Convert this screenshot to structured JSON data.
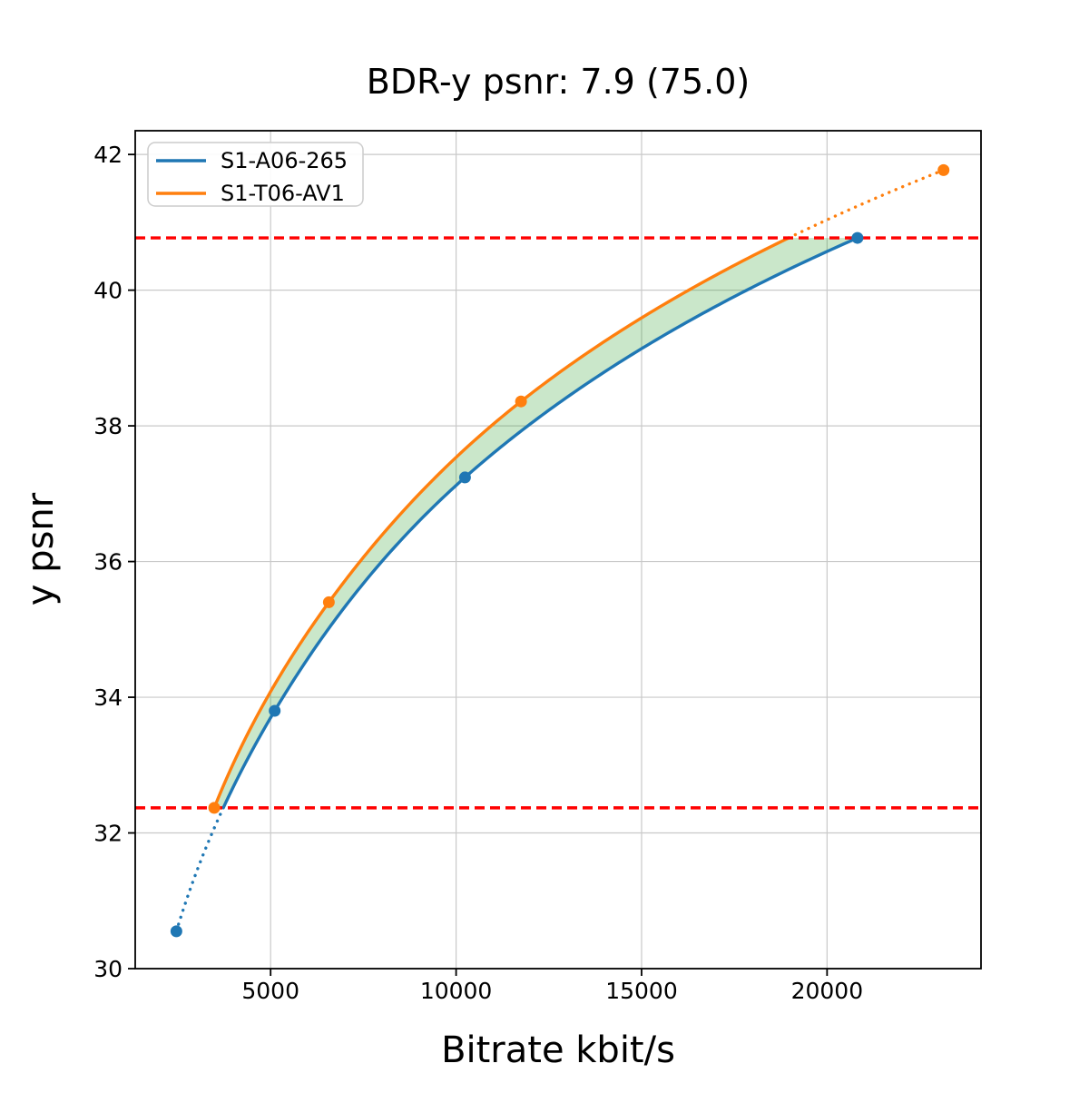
{
  "title": "BDR-y psnr: 7.9 (75.0)",
  "xlabel": "Bitrate kbit/s",
  "ylabel": "y psnr",
  "legend": {
    "items": [
      {
        "label": "S1-A06-265",
        "color": "#1f77b4"
      },
      {
        "label": "S1-T06-AV1",
        "color": "#ff7f0e"
      }
    ],
    "position": "upper-left"
  },
  "chart_data": {
    "type": "line",
    "title": "BDR-y psnr: 7.9 (75.0)",
    "xlabel": "Bitrate kbit/s",
    "ylabel": "y psnr",
    "xlim": [
      1350,
      24150
    ],
    "ylim": [
      30.0,
      42.35
    ],
    "grid": true,
    "xticks": [
      5000,
      10000,
      15000,
      20000
    ],
    "yticks": [
      30,
      32,
      34,
      36,
      38,
      40,
      42
    ],
    "series": [
      {
        "name": "S1-A06-265",
        "color": "#1f77b4",
        "points": [
          [
            2460,
            30.55
          ],
          [
            5110,
            33.8
          ],
          [
            10240,
            37.24
          ],
          [
            20820,
            40.77
          ]
        ]
      },
      {
        "name": "S1-T06-AV1",
        "color": "#ff7f0e",
        "points": [
          [
            3480,
            32.37
          ],
          [
            6570,
            35.4
          ],
          [
            11750,
            38.36
          ],
          [
            23140,
            41.77
          ]
        ]
      }
    ],
    "hlines": {
      "lower": 32.37,
      "upper": 40.77,
      "color": "#ff0000",
      "style": "dashed"
    },
    "band": {
      "description": "area between the two rate-distortion curves inside the red overlap interval",
      "color": "#2ca02c",
      "opacity": 0.25
    },
    "interpolation": "monotone-cubic-in-log10-bitrate",
    "extrapolated_segments_style": "dotted"
  }
}
